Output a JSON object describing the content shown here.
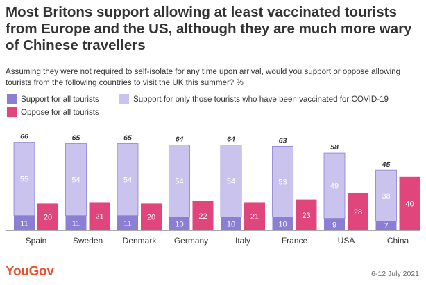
{
  "title": "Most Britons support allowing at least vaccinated tourists from Europe and the US, although they are much more wary of Chinese travellers",
  "subtitle": "Assuming they were not required to self-isolate for any time upon arrival, would you support or oppose allowing tourists from the following countries to visit the UK this summer? %",
  "legend": [
    {
      "label": "Support for all tourists",
      "color": "#8a7fd4"
    },
    {
      "label": "Support for only those tourists who have been vaccinated for COVID-19",
      "color": "#c9c3ee"
    },
    {
      "label": "Oppose for all tourists",
      "color": "#e0457b"
    }
  ],
  "footer": {
    "brand": "YouGov",
    "date": "6-12 July 2021"
  },
  "chart_data": {
    "type": "bar",
    "stacked_series": [
      "Support for all tourists",
      "Support for only those tourists who have been vaccinated for COVID-19"
    ],
    "categories": [
      "Spain",
      "Sweden",
      "Denmark",
      "Germany",
      "Italy",
      "France",
      "USA",
      "China"
    ],
    "series": [
      {
        "name": "Support for all tourists",
        "values": [
          11,
          11,
          11,
          10,
          10,
          10,
          9,
          7
        ],
        "color": "#8a7fd4"
      },
      {
        "name": "Support for only those tourists who have been vaccinated for COVID-19",
        "values": [
          55,
          54,
          54,
          54,
          54,
          53,
          49,
          38
        ],
        "color": "#c9c3ee"
      },
      {
        "name": "Oppose for all tourists",
        "values": [
          20,
          21,
          20,
          22,
          21,
          23,
          28,
          40
        ],
        "color": "#e0457b"
      }
    ],
    "totals": [
      66,
      65,
      65,
      64,
      64,
      63,
      58,
      45
    ],
    "ylim": [
      0,
      70
    ],
    "grid": false,
    "legend_position": "top-left"
  }
}
